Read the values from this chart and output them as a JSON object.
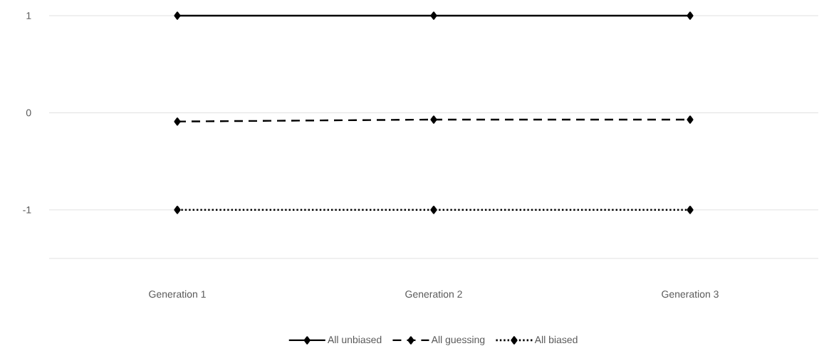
{
  "chart_data": {
    "type": "line",
    "categories": [
      "Generation 1",
      "Generation 2",
      "Generation 3"
    ],
    "series": [
      {
        "name": "All unbiased",
        "color": "#000000",
        "line_style": "solid",
        "values": [
          1,
          1,
          1
        ]
      },
      {
        "name": "All guessing",
        "color": "#000000",
        "line_style": "dashed",
        "values": [
          -0.09,
          -0.07,
          -0.07
        ]
      },
      {
        "name": "All biased",
        "color": "#000000",
        "line_style": "dotted",
        "values": [
          -1,
          -1,
          -1
        ]
      }
    ],
    "ylim": [
      -1.5,
      1
    ],
    "yticks": [
      -1,
      0,
      1
    ],
    "grid": "y",
    "legend": "bottom",
    "marker": "diamond"
  }
}
